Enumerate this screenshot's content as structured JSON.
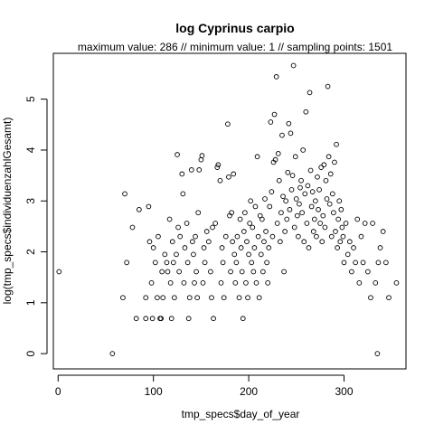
{
  "chart_data": {
    "type": "scatter",
    "title": "log Cyprinus carpio",
    "subtitle": "maximum value: 286  //  minimum value: 1  // sampling points: 1501",
    "xlabel": "tmp_specs$day_of_year",
    "ylabel": "log(tmp_specs$individuenzahlGesamt)",
    "xlim": [
      -5,
      365
    ],
    "ylim": [
      -0.3,
      5.9
    ],
    "xticks": [
      0,
      100,
      200,
      300
    ],
    "yticks": [
      0,
      1,
      2,
      3,
      4,
      5
    ],
    "grid": false,
    "marker": "open-circle",
    "summary": {
      "maximum_value": 286,
      "minimum_value": 1,
      "sampling_points": 1501
    },
    "series": [
      {
        "points": [
          [
            1,
            1.61
          ],
          [
            57,
            0
          ],
          [
            68,
            1.1
          ],
          [
            70,
            3.14
          ],
          [
            72,
            1.79
          ],
          [
            78,
            2.48
          ],
          [
            82,
            0.69
          ],
          [
            85,
            2.83
          ],
          [
            92,
            0.69
          ],
          [
            92,
            1.1
          ],
          [
            95,
            2.89
          ],
          [
            96,
            2.2
          ],
          [
            98,
            1.39
          ],
          [
            99,
            0.69
          ],
          [
            100,
            2.08
          ],
          [
            102,
            1.79
          ],
          [
            104,
            1.1
          ],
          [
            105,
            2.3
          ],
          [
            107,
            0.69
          ],
          [
            108,
            0.69
          ],
          [
            109,
            1.61
          ],
          [
            110,
            1.1
          ],
          [
            112,
            1.95
          ],
          [
            114,
            1.79
          ],
          [
            115,
            1.61
          ],
          [
            117,
            2.64
          ],
          [
            118,
            1.39
          ],
          [
            119,
            0.69
          ],
          [
            120,
            2.2
          ],
          [
            121,
            1.79
          ],
          [
            122,
            1.1
          ],
          [
            124,
            1.95
          ],
          [
            125,
            3.91
          ],
          [
            126,
            2.48
          ],
          [
            127,
            1.61
          ],
          [
            128,
            2.3
          ],
          [
            130,
            3.53
          ],
          [
            131,
            3.14
          ],
          [
            132,
            1.39
          ],
          [
            133,
            2.08
          ],
          [
            135,
            2.56
          ],
          [
            136,
            1.79
          ],
          [
            137,
            0.69
          ],
          [
            138,
            1.1
          ],
          [
            140,
            3.61
          ],
          [
            141,
            2.2
          ],
          [
            142,
            1.95
          ],
          [
            143,
            1.39
          ],
          [
            144,
            2.3
          ],
          [
            145,
            1.61
          ],
          [
            146,
            1.1
          ],
          [
            147,
            2.77
          ],
          [
            148,
            3.61
          ],
          [
            150,
            3.81
          ],
          [
            151,
            3.89
          ],
          [
            152,
            1.39
          ],
          [
            153,
            2.08
          ],
          [
            154,
            1.79
          ],
          [
            156,
            2.4
          ],
          [
            158,
            2.2
          ],
          [
            160,
            1.61
          ],
          [
            161,
            1.1
          ],
          [
            162,
            2.48
          ],
          [
            163,
            0.69
          ],
          [
            165,
            2.56
          ],
          [
            167,
            3.66
          ],
          [
            168,
            3.71
          ],
          [
            170,
            3.4
          ],
          [
            171,
            1.39
          ],
          [
            172,
            2.08
          ],
          [
            173,
            1.79
          ],
          [
            174,
            1.1
          ],
          [
            176,
            2.3
          ],
          [
            178,
            4.51
          ],
          [
            179,
            3.47
          ],
          [
            180,
            2.71
          ],
          [
            181,
            1.61
          ],
          [
            182,
            2.77
          ],
          [
            183,
            2.2
          ],
          [
            184,
            3.53
          ],
          [
            185,
            1.95
          ],
          [
            186,
            1.39
          ],
          [
            187,
            1.79
          ],
          [
            188,
            2.3
          ],
          [
            190,
            1.1
          ],
          [
            191,
            2.64
          ],
          [
            192,
            2.08
          ],
          [
            193,
            1.61
          ],
          [
            194,
            0.69
          ],
          [
            195,
            2.4
          ],
          [
            196,
            2.77
          ],
          [
            197,
            1.39
          ],
          [
            198,
            2.2
          ],
          [
            199,
            1.1
          ],
          [
            200,
            1.95
          ],
          [
            201,
            2.56
          ],
          [
            202,
            3.0
          ],
          [
            203,
            1.79
          ],
          [
            204,
            2.48
          ],
          [
            205,
            1.61
          ],
          [
            206,
            2.08
          ],
          [
            207,
            2.89
          ],
          [
            208,
            1.39
          ],
          [
            209,
            3.87
          ],
          [
            210,
            2.3
          ],
          [
            211,
            1.1
          ],
          [
            212,
            2.71
          ],
          [
            213,
            1.95
          ],
          [
            214,
            2.64
          ],
          [
            215,
            1.61
          ],
          [
            216,
            2.2
          ],
          [
            217,
            3.04
          ],
          [
            218,
            2.4
          ],
          [
            219,
            1.79
          ],
          [
            220,
            1.39
          ],
          [
            221,
            2.08
          ],
          [
            222,
            2.89
          ],
          [
            223,
            4.55
          ],
          [
            224,
            3.18
          ],
          [
            225,
            2.3
          ],
          [
            226,
            3.76
          ],
          [
            227,
            4.7
          ],
          [
            228,
            3.81
          ],
          [
            229,
            5.44
          ],
          [
            230,
            2.56
          ],
          [
            231,
            3.93
          ],
          [
            232,
            3.4
          ],
          [
            233,
            2.2
          ],
          [
            234,
            2.77
          ],
          [
            235,
            4.29
          ],
          [
            236,
            3.09
          ],
          [
            237,
            1.61
          ],
          [
            238,
            2.4
          ],
          [
            239,
            3.0
          ],
          [
            240,
            2.64
          ],
          [
            241,
            3.56
          ],
          [
            242,
            4.52
          ],
          [
            243,
            2.83
          ],
          [
            244,
            4.33
          ],
          [
            245,
            3.22
          ],
          [
            246,
            3.5
          ],
          [
            247,
            5.66
          ],
          [
            248,
            2.48
          ],
          [
            249,
            3.87
          ],
          [
            250,
            3.04
          ],
          [
            251,
            2.71
          ],
          [
            252,
            2.3
          ],
          [
            253,
            2.94
          ],
          [
            254,
            3.26
          ],
          [
            255,
            3.4
          ],
          [
            256,
            2.77
          ],
          [
            257,
            4.0
          ],
          [
            258,
            2.2
          ],
          [
            259,
            3.14
          ],
          [
            260,
            4.75
          ],
          [
            261,
            2.56
          ],
          [
            262,
            3.3
          ],
          [
            263,
            2.08
          ],
          [
            264,
            5.13
          ],
          [
            265,
            3.6
          ],
          [
            266,
            2.89
          ],
          [
            267,
            3.18
          ],
          [
            268,
            2.4
          ],
          [
            269,
            2.64
          ],
          [
            270,
            3.0
          ],
          [
            271,
            2.3
          ],
          [
            272,
            3.47
          ],
          [
            273,
            2.83
          ],
          [
            274,
            3.22
          ],
          [
            275,
            2.56
          ],
          [
            276,
            3.66
          ],
          [
            277,
            2.2
          ],
          [
            278,
            2.71
          ],
          [
            279,
            3.71
          ],
          [
            280,
            2.48
          ],
          [
            281,
            3.4
          ],
          [
            282,
            3.04
          ],
          [
            283,
            5.25
          ],
          [
            284,
            3.87
          ],
          [
            285,
            2.94
          ],
          [
            286,
            3.53
          ],
          [
            287,
            2.3
          ],
          [
            288,
            3.14
          ],
          [
            289,
            2.77
          ],
          [
            290,
            3.76
          ],
          [
            291,
            2.4
          ],
          [
            292,
            4.11
          ],
          [
            293,
            2.08
          ],
          [
            294,
            2.64
          ],
          [
            295,
            3.0
          ],
          [
            296,
            2.2
          ],
          [
            297,
            2.83
          ],
          [
            298,
            2.48
          ],
          [
            299,
            2.3
          ],
          [
            300,
            1.79
          ],
          [
            302,
            2.56
          ],
          [
            304,
            1.95
          ],
          [
            306,
            2.2
          ],
          [
            308,
            1.61
          ],
          [
            310,
            2.08
          ],
          [
            312,
            1.79
          ],
          [
            314,
            2.64
          ],
          [
            316,
            1.39
          ],
          [
            318,
            2.3
          ],
          [
            320,
            1.79
          ],
          [
            322,
            2.56
          ],
          [
            325,
            1.61
          ],
          [
            328,
            1.1
          ],
          [
            330,
            2.56
          ],
          [
            333,
            1.39
          ],
          [
            335,
            0
          ],
          [
            336,
            1.79
          ],
          [
            338,
            2.08
          ],
          [
            341,
            2.4
          ],
          [
            344,
            1.79
          ],
          [
            347,
            1.1
          ],
          [
            355,
            1.39
          ]
        ]
      }
    ]
  }
}
